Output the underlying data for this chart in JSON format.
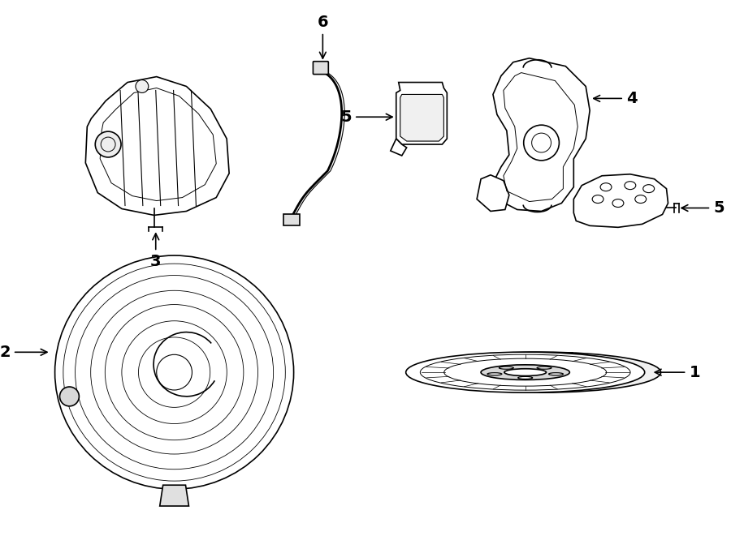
{
  "bg_color": "#ffffff",
  "line_color": "#000000",
  "line_width": 1.2,
  "label_fontsize": 14
}
